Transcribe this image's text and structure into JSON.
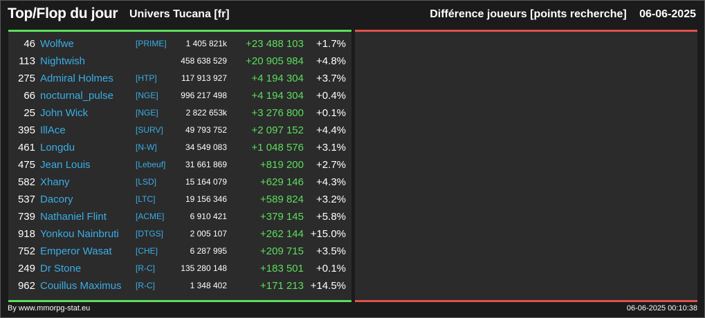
{
  "header": {
    "title": "Top/Flop du jour",
    "universe": "Univers Tucana [fr]",
    "metric": "Différence joueurs [points recherche]",
    "date": "06-06-2025"
  },
  "top_players": [
    {
      "rank": "46",
      "name": "Wolfwe",
      "alliance": "[PRIME]",
      "points": "1 405 821k",
      "diff": "+23 488 103",
      "pct": "+1.7%"
    },
    {
      "rank": "113",
      "name": "Nightwish",
      "alliance": "",
      "points": "458 638 529",
      "diff": "+20 905 984",
      "pct": "+4.8%"
    },
    {
      "rank": "275",
      "name": "Admiral Holmes",
      "alliance": "[HTP]",
      "points": "117 913 927",
      "diff": "+4 194 304",
      "pct": "+3.7%"
    },
    {
      "rank": "66",
      "name": "nocturnal_pulse",
      "alliance": "[NGE]",
      "points": "996 217 498",
      "diff": "+4 194 304",
      "pct": "+0.4%"
    },
    {
      "rank": "25",
      "name": "John Wick",
      "alliance": "[NGE]",
      "points": "2 822 653k",
      "diff": "+3 276 800",
      "pct": "+0.1%"
    },
    {
      "rank": "395",
      "name": "IllAce",
      "alliance": "[SURV]",
      "points": "49 793 752",
      "diff": "+2 097 152",
      "pct": "+4.4%"
    },
    {
      "rank": "461",
      "name": "Longdu",
      "alliance": "[N-W]",
      "points": "34 549 083",
      "diff": "+1 048 576",
      "pct": "+3.1%"
    },
    {
      "rank": "475",
      "name": "Jean Louis",
      "alliance": "[Lebeuf]",
      "points": "31 661 869",
      "diff": "+819 200",
      "pct": "+2.7%"
    },
    {
      "rank": "582",
      "name": "Xhany",
      "alliance": "[LSD]",
      "points": "15 164 079",
      "diff": "+629 146",
      "pct": "+4.3%"
    },
    {
      "rank": "537",
      "name": "Dacory",
      "alliance": "[LTC]",
      "points": "19 156 346",
      "diff": "+589 824",
      "pct": "+3.2%"
    },
    {
      "rank": "739",
      "name": "Nathaniel Flint",
      "alliance": "[ACME]",
      "points": "6 910 421",
      "diff": "+379 145",
      "pct": "+5.8%"
    },
    {
      "rank": "918",
      "name": "Yonkou Nainbruti",
      "alliance": "[DTGS]",
      "points": "2 005 107",
      "diff": "+262 144",
      "pct": "+15.0%"
    },
    {
      "rank": "752",
      "name": "Emperor Wasat",
      "alliance": "[CHE]",
      "points": "6 287 995",
      "diff": "+209 715",
      "pct": "+3.5%"
    },
    {
      "rank": "249",
      "name": "Dr Stone",
      "alliance": "[R-C]",
      "points": "135 280 148",
      "diff": "+183 501",
      "pct": "+0.1%"
    },
    {
      "rank": "962",
      "name": "Couillus Maximus",
      "alliance": "[R-C]",
      "points": "1 348 402",
      "diff": "+171 213",
      "pct": "+14.5%"
    }
  ],
  "flop_players": [],
  "footer": {
    "source": "By www.mmorpg-stat.eu",
    "timestamp": "06-06-2025 00:10:38"
  },
  "colors": {
    "top_accent": "#5cde5c",
    "flop_accent": "#e0524a",
    "name_color": "#3aaee6",
    "panel_bg": "#2b2b2b",
    "page_bg": "#1b1b1b"
  }
}
